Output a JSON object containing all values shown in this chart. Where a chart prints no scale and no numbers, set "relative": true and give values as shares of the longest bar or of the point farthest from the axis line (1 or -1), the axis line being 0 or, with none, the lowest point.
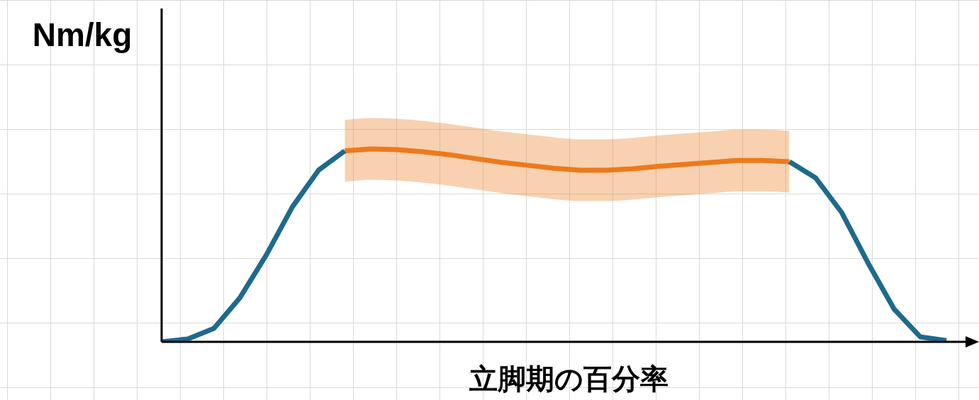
{
  "chart_data": {
    "type": "line",
    "relative": true,
    "ylabel": "Nm/kg",
    "xlabel": "立脚期の百分率",
    "marker": "none",
    "line_style": "solid",
    "categories": [
      null,
      null,
      null,
      null,
      null,
      null,
      null,
      null,
      null,
      null,
      null,
      null,
      null,
      null,
      null,
      null,
      null,
      null,
      null,
      null,
      null,
      null,
      null,
      null,
      null,
      null,
      null,
      null,
      null,
      null,
      null
    ],
    "series": [
      {
        "color": "#1d6a8e",
        "values": [
          0,
          0.015,
          0.07,
          0.23,
          0.45,
          0.7,
          0.89,
          0.99,
          null,
          null,
          null,
          null,
          null,
          null,
          null,
          null,
          null,
          null,
          null,
          null,
          null,
          null,
          null,
          null,
          0.934,
          0.85,
          0.67,
          0.41,
          0.17,
          0.026,
          0.007
        ]
      },
      {
        "color": "#ec7a1c",
        "values": [
          null,
          null,
          null,
          null,
          null,
          null,
          null,
          0.99,
          1.0,
          0.996,
          0.985,
          0.97,
          0.95,
          0.93,
          0.915,
          0.9,
          0.89,
          0.89,
          0.897,
          0.91,
          0.92,
          0.93,
          0.94,
          0.94,
          0.934,
          null,
          null,
          null,
          null,
          null,
          null
        ],
        "lower": [
          null,
          null,
          null,
          null,
          null,
          null,
          null,
          0.83,
          0.84,
          0.836,
          0.825,
          0.81,
          0.79,
          0.77,
          0.755,
          0.74,
          0.73,
          0.73,
          0.737,
          0.75,
          0.76,
          0.77,
          0.78,
          0.78,
          0.774,
          null,
          null,
          null,
          null,
          null,
          null
        ],
        "upper": [
          null,
          null,
          null,
          null,
          null,
          null,
          null,
          1.15,
          1.16,
          1.156,
          1.145,
          1.13,
          1.11,
          1.09,
          1.075,
          1.06,
          1.05,
          1.05,
          1.057,
          1.07,
          1.08,
          1.09,
          1.1,
          1.1,
          1.094,
          null,
          null,
          null,
          null,
          null,
          null
        ]
      }
    ]
  }
}
